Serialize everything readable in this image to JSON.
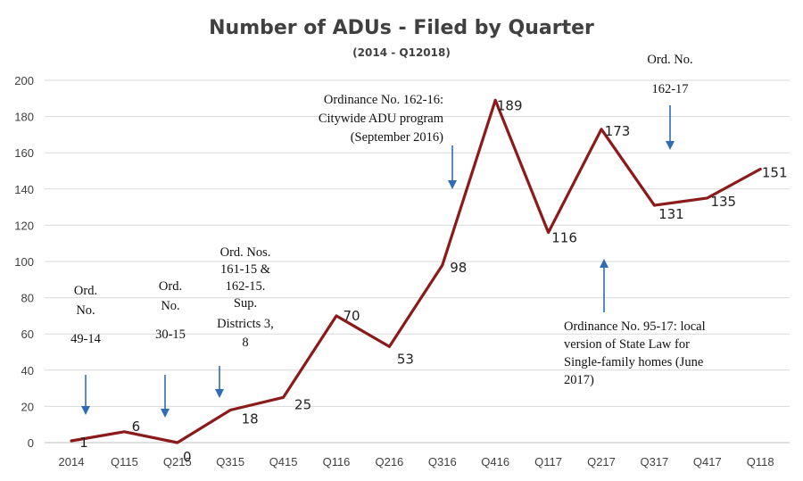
{
  "chart_data": {
    "type": "line",
    "title": "Number of ADUs  - Filed by Quarter",
    "subtitle": "(2014 - Q12018)",
    "categories": [
      "2014",
      "Q115",
      "Q215",
      "Q315",
      "Q415",
      "Q116",
      "Q216",
      "Q316",
      "Q416",
      "Q117",
      "Q217",
      "Q317",
      "Q417",
      "Q118"
    ],
    "series": [
      {
        "values": [
          1,
          6,
          0,
          18,
          25,
          70,
          53,
          98,
          189,
          116,
          173,
          131,
          135,
          151
        ]
      }
    ],
    "data_labels": [
      "1",
      "6",
      "0",
      "18",
      "25",
      "70",
      "53",
      "98",
      "189",
      "116",
      "173",
      "131",
      "135",
      "151"
    ],
    "ylim": [
      0,
      200
    ],
    "yticks": [
      0,
      20,
      40,
      60,
      80,
      100,
      120,
      140,
      160,
      180,
      200
    ],
    "grid": true,
    "legend": "none",
    "line_color": "#8b1a1a",
    "annotation_color": "#2e6db4",
    "annotations": [
      {
        "lines": [
          "Ord.",
          "No.",
          "49-14"
        ],
        "category": "2014"
      },
      {
        "lines": [
          "Ord.",
          "No.",
          "30-15"
        ],
        "category": "Q215"
      },
      {
        "lines": [
          "Ord. Nos.",
          "161-15 &",
          "162-15.",
          "Sup.",
          "Districts 3,",
          "8"
        ],
        "category": "Q315"
      },
      {
        "lines": [
          "Ordinance No. 162-16:",
          "Citywide ADU program",
          "(September 2016)"
        ],
        "category": "Q316"
      },
      {
        "lines": [
          "Ord. No.",
          "162-17"
        ],
        "category": "Q317"
      },
      {
        "lines": [
          "Ordinance No. 95-17: local",
          "version of State Law for",
          "Single-family homes (June",
          "2017)"
        ],
        "category": "Q117"
      }
    ]
  }
}
